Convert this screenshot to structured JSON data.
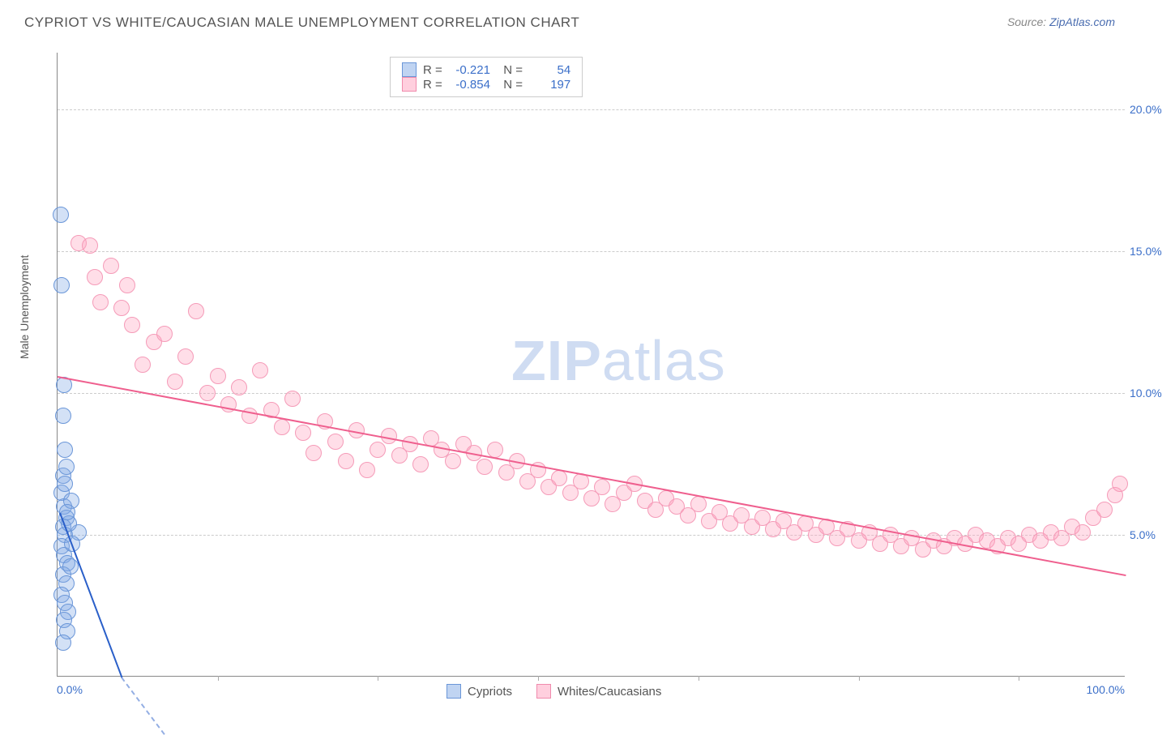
{
  "title": "CYPRIOT VS WHITE/CAUCASIAN MALE UNEMPLOYMENT CORRELATION CHART",
  "source_label": "Source: ",
  "source_name": "ZipAtlas.com",
  "watermark_a": "ZIP",
  "watermark_b": "atlas",
  "ylabel": "Male Unemployment",
  "chart": {
    "type": "scatter",
    "xlim": [
      0,
      100
    ],
    "ylim": [
      0,
      22
    ],
    "ytick_values": [
      5,
      10,
      15,
      20
    ],
    "ytick_labels": [
      "5.0%",
      "10.0%",
      "15.0%",
      "20.0%"
    ],
    "xtick_values": [
      0,
      100
    ],
    "xtick_labels": [
      "0.0%",
      "100.0%"
    ],
    "vgrid_values": [
      15,
      30,
      45,
      60,
      75,
      90
    ],
    "marker_radius": 10,
    "background_color": "#ffffff",
    "grid_color": "#cccccc",
    "series": [
      {
        "name": "Cypriots",
        "color_fill": "rgba(130,170,230,0.35)",
        "color_stroke": "#6a96d8",
        "R": "-0.221",
        "N": "54",
        "trend": {
          "x1": 0.2,
          "y1": 5.8,
          "x2": 6,
          "y2": 0,
          "color": "#2a5fc9",
          "dashed_ext": true
        },
        "points": [
          [
            0.3,
            16.3
          ],
          [
            0.4,
            13.8
          ],
          [
            0.5,
            9.2
          ],
          [
            0.6,
            10.3
          ],
          [
            0.7,
            8.0
          ],
          [
            0.5,
            7.1
          ],
          [
            0.4,
            6.5
          ],
          [
            0.6,
            6.0
          ],
          [
            0.8,
            5.6
          ],
          [
            0.5,
            5.3
          ],
          [
            0.7,
            5.0
          ],
          [
            0.4,
            4.6
          ],
          [
            0.6,
            4.3
          ],
          [
            0.9,
            4.0
          ],
          [
            0.5,
            3.6
          ],
          [
            0.8,
            3.3
          ],
          [
            0.4,
            2.9
          ],
          [
            0.7,
            2.6
          ],
          [
            1.0,
            2.3
          ],
          [
            0.6,
            2.0
          ],
          [
            0.9,
            1.6
          ],
          [
            0.5,
            1.2
          ],
          [
            2.0,
            5.1
          ],
          [
            1.3,
            6.2
          ],
          [
            1.1,
            5.4
          ],
          [
            0.9,
            5.8
          ],
          [
            1.4,
            4.7
          ],
          [
            1.2,
            3.9
          ],
          [
            0.7,
            6.8
          ],
          [
            0.8,
            7.4
          ]
        ]
      },
      {
        "name": "Whites/Caucasians",
        "color_fill": "rgba(255,160,190,0.35)",
        "color_stroke": "#f08bad",
        "R": "-0.854",
        "N": "197",
        "trend": {
          "x1": 0,
          "y1": 10.6,
          "x2": 100,
          "y2": 3.6,
          "color": "#ef5f8e",
          "dashed_ext": false
        },
        "points": [
          [
            2,
            15.3
          ],
          [
            3,
            15.2
          ],
          [
            3.5,
            14.1
          ],
          [
            4,
            13.2
          ],
          [
            5,
            14.5
          ],
          [
            6,
            13.0
          ],
          [
            6.5,
            13.8
          ],
          [
            7,
            12.4
          ],
          [
            8,
            11.0
          ],
          [
            9,
            11.8
          ],
          [
            10,
            12.1
          ],
          [
            11,
            10.4
          ],
          [
            12,
            11.3
          ],
          [
            13,
            12.9
          ],
          [
            14,
            10.0
          ],
          [
            15,
            10.6
          ],
          [
            16,
            9.6
          ],
          [
            17,
            10.2
          ],
          [
            18,
            9.2
          ],
          [
            19,
            10.8
          ],
          [
            20,
            9.4
          ],
          [
            21,
            8.8
          ],
          [
            22,
            9.8
          ],
          [
            23,
            8.6
          ],
          [
            24,
            7.9
          ],
          [
            25,
            9.0
          ],
          [
            26,
            8.3
          ],
          [
            27,
            7.6
          ],
          [
            28,
            8.7
          ],
          [
            29,
            7.3
          ],
          [
            30,
            8.0
          ],
          [
            31,
            8.5
          ],
          [
            32,
            7.8
          ],
          [
            33,
            8.2
          ],
          [
            34,
            7.5
          ],
          [
            35,
            8.4
          ],
          [
            36,
            8.0
          ],
          [
            37,
            7.6
          ],
          [
            38,
            8.2
          ],
          [
            39,
            7.9
          ],
          [
            40,
            7.4
          ],
          [
            41,
            8.0
          ],
          [
            42,
            7.2
          ],
          [
            43,
            7.6
          ],
          [
            44,
            6.9
          ],
          [
            45,
            7.3
          ],
          [
            46,
            6.7
          ],
          [
            47,
            7.0
          ],
          [
            48,
            6.5
          ],
          [
            49,
            6.9
          ],
          [
            50,
            6.3
          ],
          [
            51,
            6.7
          ],
          [
            52,
            6.1
          ],
          [
            53,
            6.5
          ],
          [
            54,
            6.8
          ],
          [
            55,
            6.2
          ],
          [
            56,
            5.9
          ],
          [
            57,
            6.3
          ],
          [
            58,
            6.0
          ],
          [
            59,
            5.7
          ],
          [
            60,
            6.1
          ],
          [
            61,
            5.5
          ],
          [
            62,
            5.8
          ],
          [
            63,
            5.4
          ],
          [
            64,
            5.7
          ],
          [
            65,
            5.3
          ],
          [
            66,
            5.6
          ],
          [
            67,
            5.2
          ],
          [
            68,
            5.5
          ],
          [
            69,
            5.1
          ],
          [
            70,
            5.4
          ],
          [
            71,
            5.0
          ],
          [
            72,
            5.3
          ],
          [
            73,
            4.9
          ],
          [
            74,
            5.2
          ],
          [
            75,
            4.8
          ],
          [
            76,
            5.1
          ],
          [
            77,
            4.7
          ],
          [
            78,
            5.0
          ],
          [
            79,
            4.6
          ],
          [
            80,
            4.9
          ],
          [
            81,
            4.5
          ],
          [
            82,
            4.8
          ],
          [
            83,
            4.6
          ],
          [
            84,
            4.9
          ],
          [
            85,
            4.7
          ],
          [
            86,
            5.0
          ],
          [
            87,
            4.8
          ],
          [
            88,
            4.6
          ],
          [
            89,
            4.9
          ],
          [
            90,
            4.7
          ],
          [
            91,
            5.0
          ],
          [
            92,
            4.8
          ],
          [
            93,
            5.1
          ],
          [
            94,
            4.9
          ],
          [
            95,
            5.3
          ],
          [
            96,
            5.1
          ],
          [
            97,
            5.6
          ],
          [
            98,
            5.9
          ],
          [
            99,
            6.4
          ],
          [
            99.5,
            6.8
          ]
        ]
      }
    ]
  },
  "legend_top": {
    "R_label": "R = ",
    "N_label": "N = "
  },
  "legend_bottom": {
    "series1": "Cypriots",
    "series2": "Whites/Caucasians"
  }
}
